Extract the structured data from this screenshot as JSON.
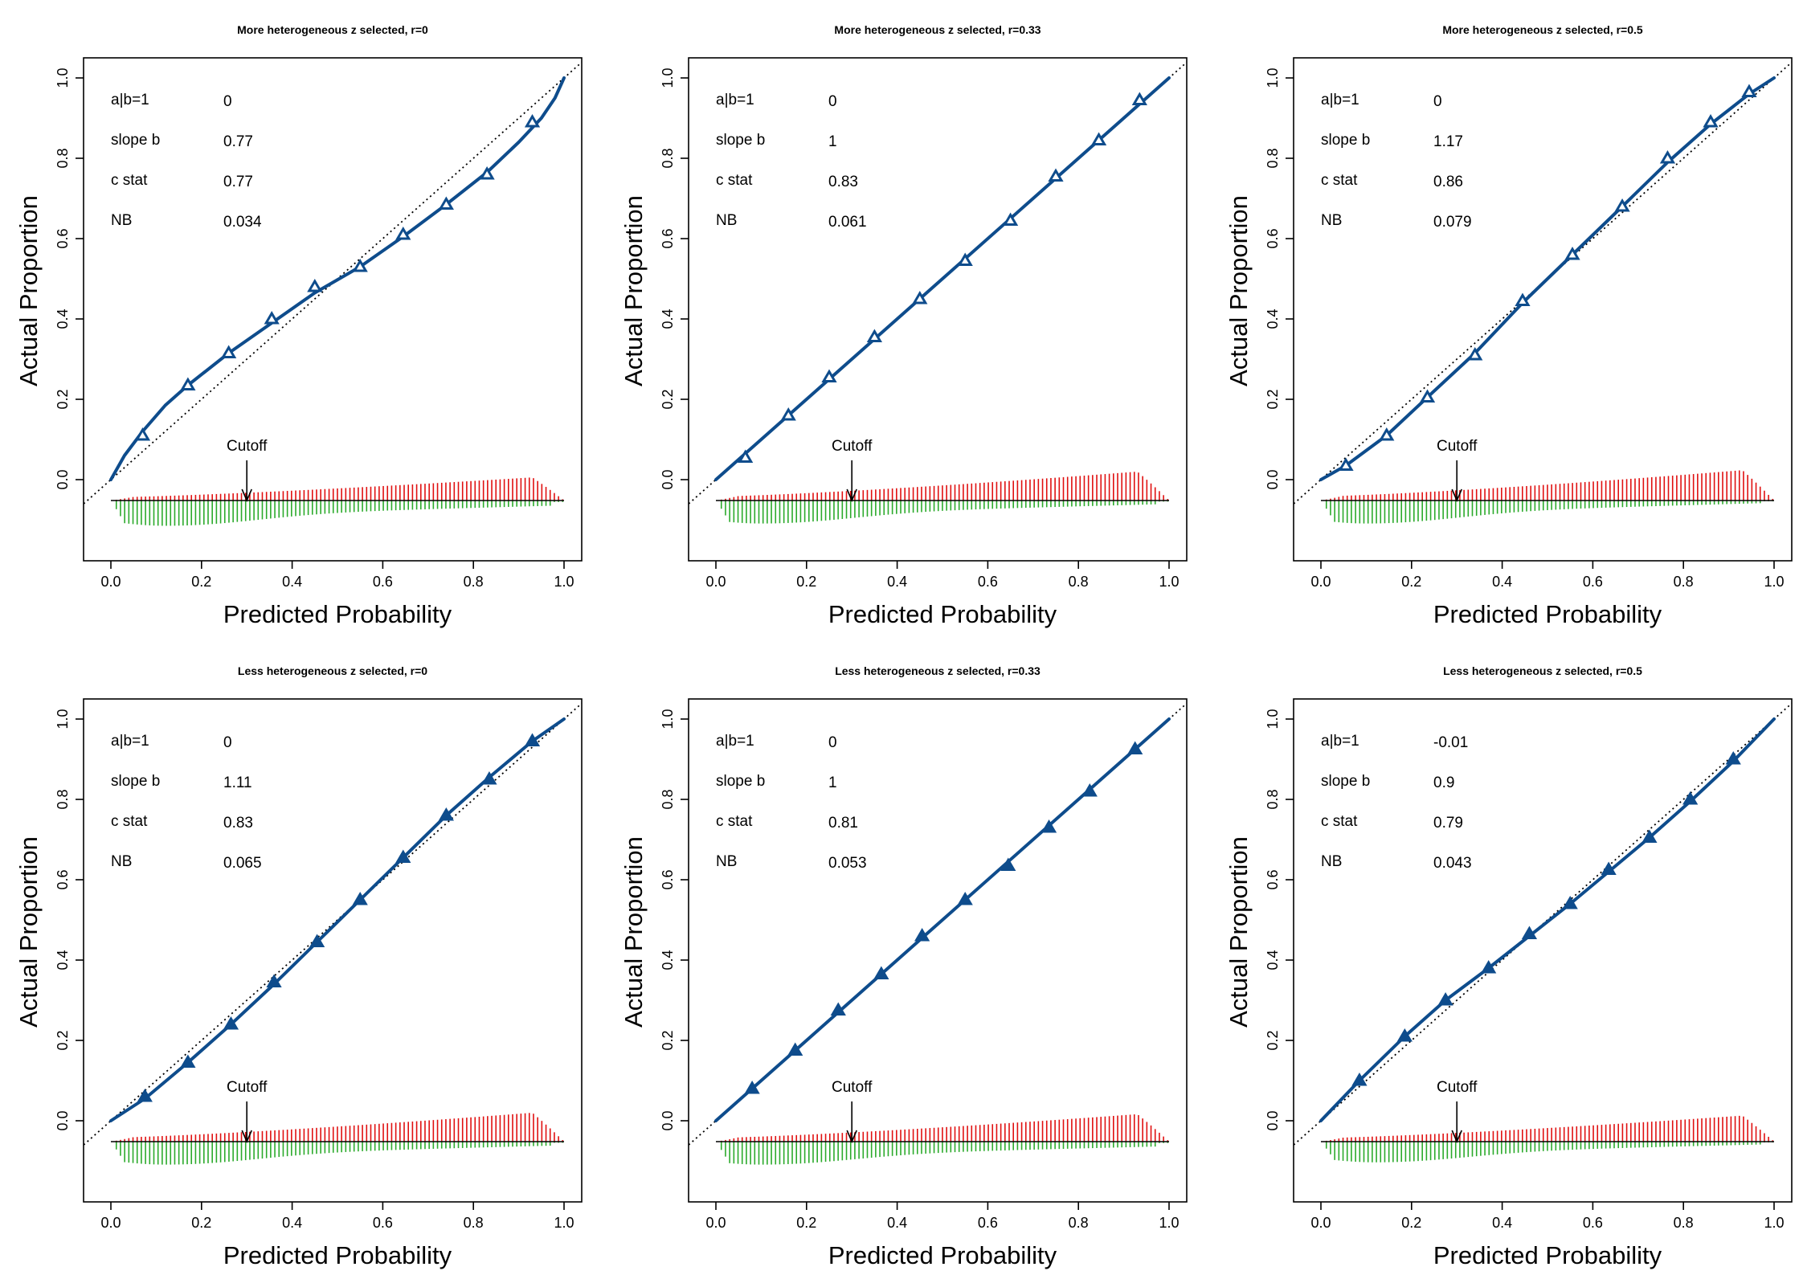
{
  "figure": {
    "xlabel": "Predicted Probability",
    "ylabel": "Actual Proportion"
  },
  "colors": {
    "curve": "#0E4C8C",
    "reference": "#000000",
    "events": "#E01010",
    "non_events": "#2BAA2B"
  },
  "chart_data": [
    {
      "type": "line",
      "title": "More heterogeneous z selected, r=0",
      "xlabel": "Predicted Probability",
      "ylabel": "Actual Proportion",
      "xlim": [
        0,
        1
      ],
      "ylim": [
        0,
        1
      ],
      "x_ticks": [
        "0.0",
        "0.2",
        "0.4",
        "0.6",
        "0.8",
        "1.0"
      ],
      "y_ticks": [
        "0.0",
        "0.2",
        "0.4",
        "0.6",
        "0.8",
        "1.0"
      ],
      "stats": [
        {
          "label": "a|b=1",
          "value": "0"
        },
        {
          "label": "slope b",
          "value": "0.77"
        },
        {
          "label": "c stat",
          "value": "0.77"
        },
        {
          "label": "NB",
          "value": "0.034"
        }
      ],
      "cutoff": {
        "label": "Cutoff",
        "x": 0.3
      },
      "series": [
        {
          "x": [
            0.07,
            0.17,
            0.26,
            0.355,
            0.45,
            0.55,
            0.645,
            0.74,
            0.83,
            0.93
          ],
          "y": [
            0.11,
            0.235,
            0.315,
            0.4,
            0.48,
            0.53,
            0.61,
            0.685,
            0.76,
            0.89
          ],
          "marker": "open-triangle"
        }
      ],
      "curve": {
        "x": [
          0,
          0.03,
          0.07,
          0.12,
          0.17,
          0.26,
          0.355,
          0.45,
          0.55,
          0.645,
          0.74,
          0.83,
          0.9,
          0.95,
          0.98,
          1.0
        ],
        "y": [
          0,
          0.06,
          0.12,
          0.185,
          0.235,
          0.315,
          0.39,
          0.465,
          0.53,
          0.605,
          0.685,
          0.765,
          0.84,
          0.9,
          0.95,
          1.0
        ]
      },
      "spikes": {
        "peak_x": 0.12,
        "peak_lo": 0.11,
        "peak_hi": 0.055,
        "decay_to_lo": 0.02,
        "events_scale": 0.8
      }
    },
    {
      "type": "line",
      "title": "More heterogeneous z selected, r=0.33",
      "xlabel": "Predicted Probability",
      "ylabel": "Actual Proportion",
      "xlim": [
        0,
        1
      ],
      "ylim": [
        0,
        1
      ],
      "x_ticks": [
        "0.0",
        "0.2",
        "0.4",
        "0.6",
        "0.8",
        "1.0"
      ],
      "y_ticks": [
        "0.0",
        "0.2",
        "0.4",
        "0.6",
        "0.8",
        "1.0"
      ],
      "stats": [
        {
          "label": "a|b=1",
          "value": "0"
        },
        {
          "label": "slope b",
          "value": "1"
        },
        {
          "label": "c stat",
          "value": "0.83"
        },
        {
          "label": "NB",
          "value": "0.061"
        }
      ],
      "cutoff": {
        "label": "Cutoff",
        "x": 0.3
      },
      "series": [
        {
          "x": [
            0.065,
            0.16,
            0.25,
            0.35,
            0.45,
            0.55,
            0.65,
            0.75,
            0.845,
            0.935
          ],
          "y": [
            0.055,
            0.16,
            0.255,
            0.355,
            0.45,
            0.545,
            0.645,
            0.755,
            0.845,
            0.945
          ],
          "marker": "open-triangle"
        }
      ],
      "curve": {
        "x": [
          0,
          1
        ],
        "y": [
          0,
          1
        ]
      },
      "spikes": {
        "peak_x": 0.1,
        "peak_lo": 0.1,
        "peak_hi": 0.1,
        "decay_to_lo": 0.015,
        "events_scale": 1.0
      }
    },
    {
      "type": "line",
      "title": "More heterogeneous z selected, r=0.5",
      "xlabel": "Predicted Probability",
      "ylabel": "Actual Proportion",
      "xlim": [
        0,
        1
      ],
      "ylim": [
        0,
        1
      ],
      "x_ticks": [
        "0.0",
        "0.2",
        "0.4",
        "0.6",
        "0.8",
        "1.0"
      ],
      "y_ticks": [
        "0.0",
        "0.2",
        "0.4",
        "0.6",
        "0.8",
        "1.0"
      ],
      "stats": [
        {
          "label": "a|b=1",
          "value": "0"
        },
        {
          "label": "slope b",
          "value": "1.17"
        },
        {
          "label": "c stat",
          "value": "0.86"
        },
        {
          "label": "NB",
          "value": "0.079"
        }
      ],
      "cutoff": {
        "label": "Cutoff",
        "x": 0.3
      },
      "series": [
        {
          "x": [
            0.055,
            0.145,
            0.235,
            0.34,
            0.445,
            0.555,
            0.665,
            0.765,
            0.86,
            0.945
          ],
          "y": [
            0.035,
            0.11,
            0.205,
            0.31,
            0.445,
            0.56,
            0.68,
            0.8,
            0.89,
            0.965
          ],
          "marker": "open-triangle"
        }
      ],
      "curve": {
        "x": [
          0,
          0.055,
          0.145,
          0.235,
          0.34,
          0.445,
          0.555,
          0.665,
          0.765,
          0.86,
          0.945,
          1.0
        ],
        "y": [
          0,
          0.035,
          0.11,
          0.205,
          0.315,
          0.44,
          0.56,
          0.68,
          0.79,
          0.885,
          0.96,
          1.0
        ]
      },
      "spikes": {
        "peak_x": 0.1,
        "peak_lo": 0.1,
        "peak_hi": 0.1,
        "decay_to_lo": 0.01,
        "events_scale": 1.05
      }
    },
    {
      "type": "line",
      "title": "Less heterogeneous z selected, r=0",
      "xlabel": "Predicted Probability",
      "ylabel": "Actual Proportion",
      "xlim": [
        0,
        1
      ],
      "ylim": [
        0,
        1
      ],
      "x_ticks": [
        "0.0",
        "0.2",
        "0.4",
        "0.6",
        "0.8",
        "1.0"
      ],
      "y_ticks": [
        "0.0",
        "0.2",
        "0.4",
        "0.6",
        "0.8",
        "1.0"
      ],
      "stats": [
        {
          "label": "a|b=1",
          "value": "0"
        },
        {
          "label": "slope b",
          "value": "1.11"
        },
        {
          "label": "c stat",
          "value": "0.83"
        },
        {
          "label": "NB",
          "value": "0.065"
        }
      ],
      "cutoff": {
        "label": "Cutoff",
        "x": 0.3
      },
      "series": [
        {
          "x": [
            0.075,
            0.17,
            0.265,
            0.36,
            0.455,
            0.55,
            0.645,
            0.74,
            0.835,
            0.93
          ],
          "y": [
            0.06,
            0.145,
            0.24,
            0.345,
            0.445,
            0.55,
            0.655,
            0.76,
            0.85,
            0.945
          ],
          "marker": "filled-triangle"
        }
      ],
      "curve": {
        "x": [
          0,
          0.075,
          0.17,
          0.265,
          0.36,
          0.455,
          0.55,
          0.645,
          0.74,
          0.835,
          0.93,
          1.0
        ],
        "y": [
          0,
          0.055,
          0.145,
          0.24,
          0.34,
          0.445,
          0.55,
          0.655,
          0.76,
          0.855,
          0.945,
          1.0
        ]
      },
      "spikes": {
        "peak_x": 0.12,
        "peak_lo": 0.1,
        "peak_hi": 0.1,
        "decay_to_lo": 0.015,
        "events_scale": 1.0
      }
    },
    {
      "type": "line",
      "title": "Less heterogeneous z selected, r=0.33",
      "xlabel": "Predicted Probability",
      "ylabel": "Actual Proportion",
      "xlim": [
        0,
        1
      ],
      "ylim": [
        0,
        1
      ],
      "x_ticks": [
        "0.0",
        "0.2",
        "0.4",
        "0.6",
        "0.8",
        "1.0"
      ],
      "y_ticks": [
        "0.0",
        "0.2",
        "0.4",
        "0.6",
        "0.8",
        "1.0"
      ],
      "stats": [
        {
          "label": "a|b=1",
          "value": "0"
        },
        {
          "label": "slope b",
          "value": "1"
        },
        {
          "label": "c stat",
          "value": "0.81"
        },
        {
          "label": "NB",
          "value": "0.053"
        }
      ],
      "cutoff": {
        "label": "Cutoff",
        "x": 0.3
      },
      "series": [
        {
          "x": [
            0.08,
            0.175,
            0.27,
            0.365,
            0.455,
            0.55,
            0.645,
            0.735,
            0.825,
            0.925
          ],
          "y": [
            0.08,
            0.175,
            0.275,
            0.365,
            0.46,
            0.55,
            0.635,
            0.73,
            0.82,
            0.925
          ],
          "marker": "filled-triangle"
        }
      ],
      "curve": {
        "x": [
          0,
          1
        ],
        "y": [
          0,
          1
        ]
      },
      "spikes": {
        "peak_x": 0.1,
        "peak_lo": 0.1,
        "peak_hi": 0.1,
        "decay_to_lo": 0.02,
        "events_scale": 0.95
      }
    },
    {
      "type": "line",
      "title": "Less heterogeneous z selected, r=0.5",
      "xlabel": "Predicted Probability",
      "ylabel": "Actual Proportion",
      "xlim": [
        0,
        1
      ],
      "ylim": [
        0,
        1
      ],
      "x_ticks": [
        "0.0",
        "0.2",
        "0.4",
        "0.6",
        "0.8",
        "1.0"
      ],
      "y_ticks": [
        "0.0",
        "0.2",
        "0.4",
        "0.6",
        "0.8",
        "1.0"
      ],
      "stats": [
        {
          "label": "a|b=1",
          "value": "-0.01"
        },
        {
          "label": "slope b",
          "value": "0.9"
        },
        {
          "label": "c stat",
          "value": "0.79"
        },
        {
          "label": "NB",
          "value": "0.043"
        }
      ],
      "cutoff": {
        "label": "Cutoff",
        "x": 0.3
      },
      "series": [
        {
          "x": [
            0.085,
            0.185,
            0.275,
            0.37,
            0.46,
            0.55,
            0.635,
            0.725,
            0.815,
            0.91
          ],
          "y": [
            0.1,
            0.21,
            0.3,
            0.38,
            0.465,
            0.54,
            0.625,
            0.705,
            0.8,
            0.9
          ],
          "marker": "filled-triangle"
        }
      ],
      "curve": {
        "x": [
          0,
          0.085,
          0.185,
          0.275,
          0.37,
          0.46,
          0.55,
          0.635,
          0.725,
          0.815,
          0.91,
          1.0
        ],
        "y": [
          0,
          0.1,
          0.21,
          0.3,
          0.38,
          0.46,
          0.54,
          0.62,
          0.705,
          0.795,
          0.895,
          1.0
        ]
      },
      "spikes": {
        "peak_x": 0.12,
        "peak_lo": 0.09,
        "peak_hi": 0.09,
        "decay_to_lo": 0.01,
        "events_scale": 0.9
      }
    }
  ]
}
